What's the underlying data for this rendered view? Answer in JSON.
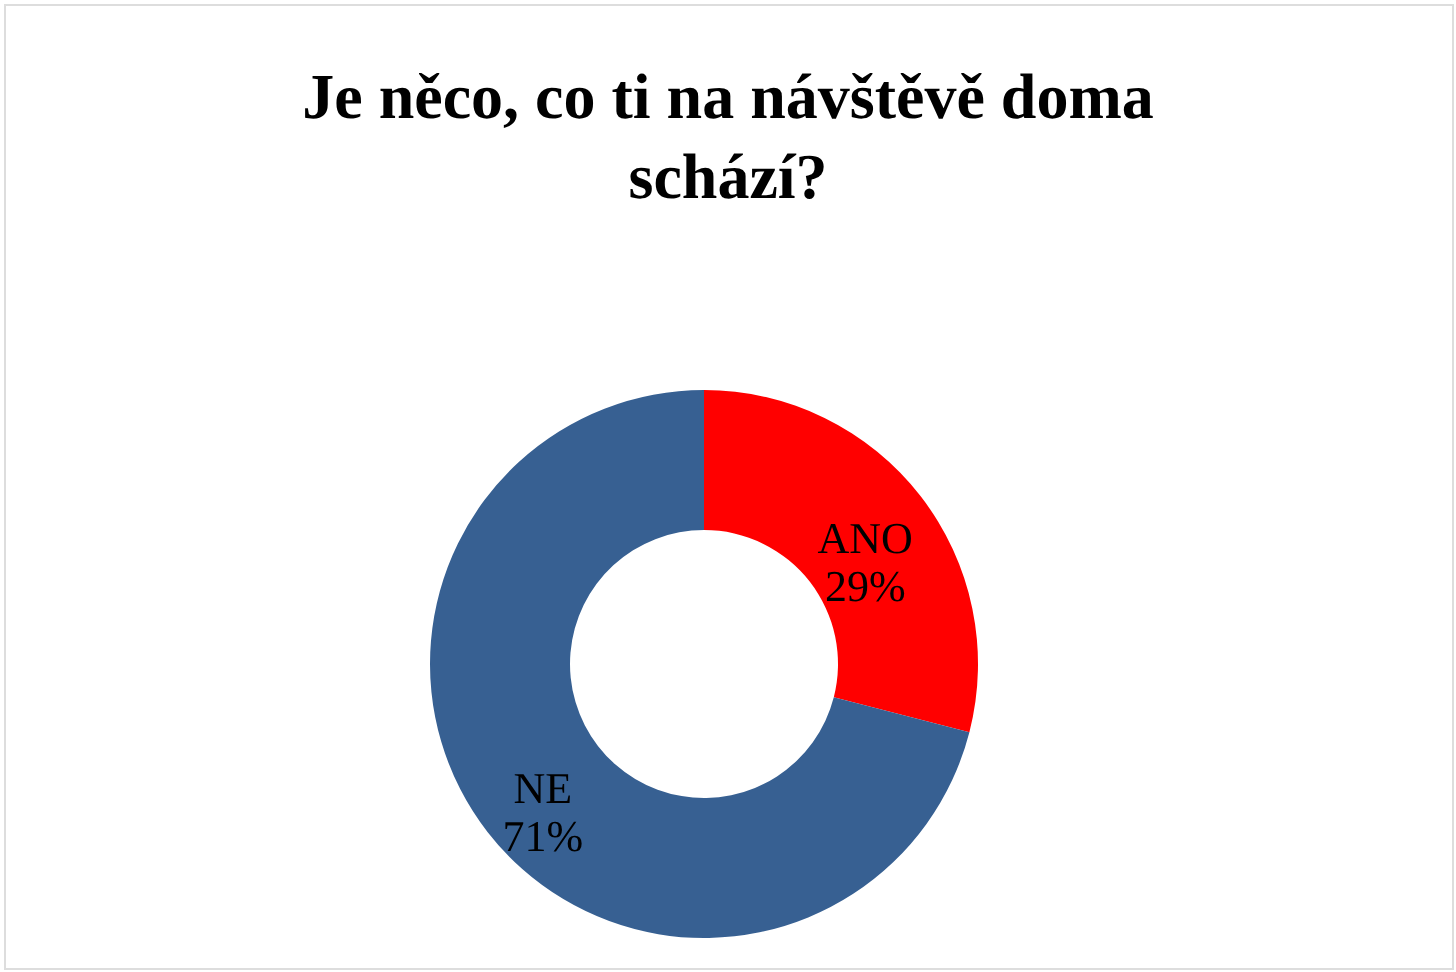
{
  "chart_data": {
    "type": "donut",
    "title": "Je něco, co ti na návštěvě doma schází?",
    "categories": [
      "ANO",
      "NE"
    ],
    "values": [
      29,
      71
    ],
    "colors": [
      "#ff0000",
      "#376092"
    ],
    "value_labels": [
      "29%",
      "71%"
    ]
  }
}
